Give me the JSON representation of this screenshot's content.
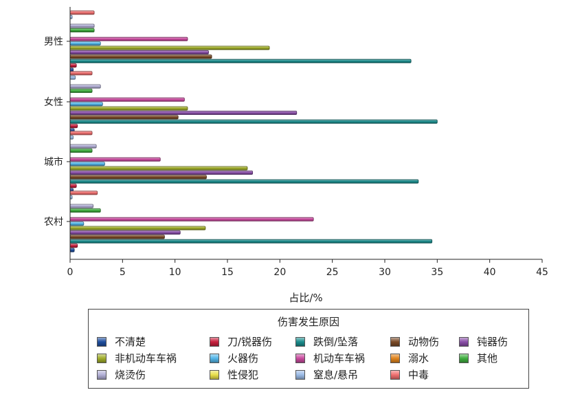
{
  "chart_data": {
    "type": "bar",
    "orientation": "horizontal",
    "categories": [
      "男性",
      "女性",
      "城市",
      "农村"
    ],
    "xlabel": "占比/%",
    "ylabel": "",
    "xlim": [
      0,
      45
    ],
    "xticks": [
      0,
      5,
      10,
      15,
      20,
      25,
      30,
      35,
      40,
      45
    ],
    "grid": false,
    "legend": {
      "title": "伤害发生原因",
      "placement": "bottom",
      "columns": 5
    },
    "series": [
      {
        "name": "不清楚",
        "color": "#1f4e9e",
        "values": [
          0.3,
          0.4,
          0.3,
          0.4
        ]
      },
      {
        "name": "刀/锐器伤",
        "color": "#c8203e",
        "values": [
          0.6,
          0.7,
          0.6,
          0.7
        ]
      },
      {
        "name": "跌倒/坠落",
        "color": "#1a8c8c",
        "values": [
          32.5,
          35.0,
          33.2,
          34.5
        ]
      },
      {
        "name": "动物伤",
        "color": "#7a4a26",
        "values": [
          13.5,
          10.3,
          13.0,
          9.0
        ]
      },
      {
        "name": "钝器伤",
        "color": "#8a4fa8",
        "values": [
          13.2,
          21.6,
          17.4,
          10.5
        ]
      },
      {
        "name": "非机动车车祸",
        "color": "#a0ad2a",
        "values": [
          19.0,
          11.2,
          16.9,
          12.9
        ]
      },
      {
        "name": "火器伤",
        "color": "#54b6e8",
        "values": [
          2.9,
          3.1,
          3.3,
          1.3
        ]
      },
      {
        "name": "机动车车祸",
        "color": "#c94a9e",
        "values": [
          11.2,
          10.9,
          8.6,
          23.2
        ]
      },
      {
        "name": "溺水",
        "color": "#e0851e",
        "values": [
          0.0,
          0.0,
          0.0,
          0.0
        ]
      },
      {
        "name": "其他",
        "color": "#3fae3f",
        "values": [
          2.3,
          2.1,
          2.1,
          2.9
        ]
      },
      {
        "name": "烧烫伤",
        "color": "#b3b0d6",
        "values": [
          2.3,
          2.9,
          2.5,
          2.2
        ]
      },
      {
        "name": "性侵犯",
        "color": "#e8df4a",
        "values": [
          0.0,
          0.0,
          0.0,
          0.0
        ]
      },
      {
        "name": "窒息/悬吊",
        "color": "#9bbbe6",
        "values": [
          0.2,
          0.5,
          0.3,
          0.2
        ]
      },
      {
        "name": "中毒",
        "color": "#ef6f6f",
        "values": [
          2.3,
          2.1,
          2.1,
          2.6
        ]
      }
    ]
  }
}
